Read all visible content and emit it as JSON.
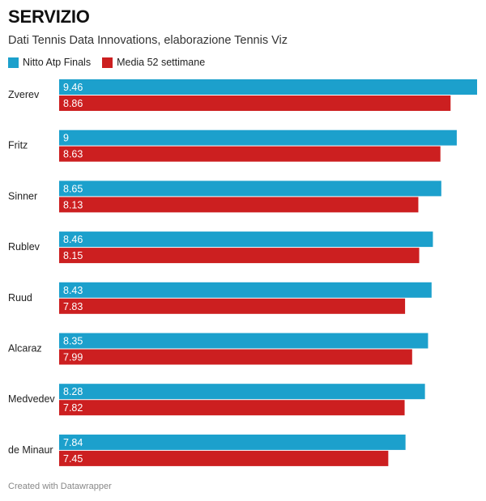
{
  "chart_data": {
    "type": "bar",
    "orientation": "horizontal",
    "title": "SERVIZIO",
    "subtitle": "Dati Tennis Data Innovations, elaborazione Tennis Viz",
    "categories": [
      "Zverev",
      "Fritz",
      "Sinner",
      "Rublev",
      "Ruud",
      "Alcaraz",
      "Medvedev",
      "de Minaur"
    ],
    "series": [
      {
        "name": "Nitto Atp Finals",
        "color": "#1ca0cc",
        "values": [
          9.46,
          9,
          8.65,
          8.46,
          8.43,
          8.35,
          8.28,
          7.84
        ],
        "labels": [
          "9.46",
          "9",
          "8.65",
          "8.46",
          "8.43",
          "8.35",
          "8.28",
          "7.84"
        ]
      },
      {
        "name": "Media 52 settimane",
        "color": "#cc1f20",
        "values": [
          8.86,
          8.63,
          8.13,
          8.15,
          7.83,
          7.99,
          7.82,
          7.45
        ],
        "labels": [
          "8.86",
          "8.63",
          "8.13",
          "8.15",
          "7.83",
          "7.99",
          "7.82",
          "7.45"
        ]
      }
    ],
    "xlim": [
      0,
      9.46
    ],
    "legend_position": "top-left",
    "grid": false
  },
  "footer": "Created with Datawrapper"
}
